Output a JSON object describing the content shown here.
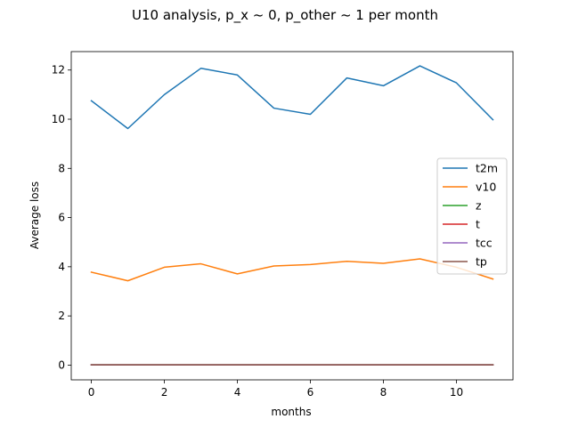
{
  "chart_data": {
    "type": "line",
    "title": "U10 analysis, p_x ~ 0, p_other ~ 1 per month",
    "xlabel": "months",
    "ylabel": "Average loss",
    "xlim": [
      -0.55,
      11.55
    ],
    "ylim": [
      -0.6,
      12.75
    ],
    "x_ticks": [
      0,
      2,
      4,
      6,
      8,
      10
    ],
    "y_ticks": [
      0,
      2,
      4,
      6,
      8,
      10,
      12
    ],
    "grid": false,
    "legend_position": "center-right",
    "x": [
      0,
      1,
      2,
      3,
      4,
      5,
      6,
      7,
      8,
      9,
      10,
      11
    ],
    "series": [
      {
        "name": "t2m",
        "color": "#1f77b4",
        "values": [
          10.75,
          9.62,
          11.0,
          12.07,
          11.8,
          10.45,
          10.2,
          11.68,
          11.36,
          12.17,
          11.48,
          9.98
        ]
      },
      {
        "name": "v10",
        "color": "#ff7f0e",
        "values": [
          3.78,
          3.43,
          3.98,
          4.12,
          3.71,
          4.03,
          4.09,
          4.22,
          4.14,
          4.32,
          3.98,
          3.5
        ]
      },
      {
        "name": "z",
        "color": "#2ca02c",
        "values": [
          0.01,
          0.01,
          0.01,
          0.01,
          0.01,
          0.01,
          0.01,
          0.01,
          0.01,
          0.01,
          0.01,
          0.01
        ]
      },
      {
        "name": "t",
        "color": "#d62728",
        "values": [
          0.01,
          0.01,
          0.01,
          0.01,
          0.01,
          0.01,
          0.01,
          0.01,
          0.01,
          0.01,
          0.01,
          0.01
        ]
      },
      {
        "name": "tcc",
        "color": "#9467bd",
        "values": [
          0.01,
          0.01,
          0.01,
          0.01,
          0.01,
          0.01,
          0.01,
          0.01,
          0.01,
          0.01,
          0.01,
          0.01
        ]
      },
      {
        "name": "tp",
        "color": "#8c564b",
        "values": [
          0.01,
          0.01,
          0.01,
          0.01,
          0.01,
          0.01,
          0.01,
          0.01,
          0.01,
          0.01,
          0.01,
          0.01
        ]
      }
    ]
  }
}
